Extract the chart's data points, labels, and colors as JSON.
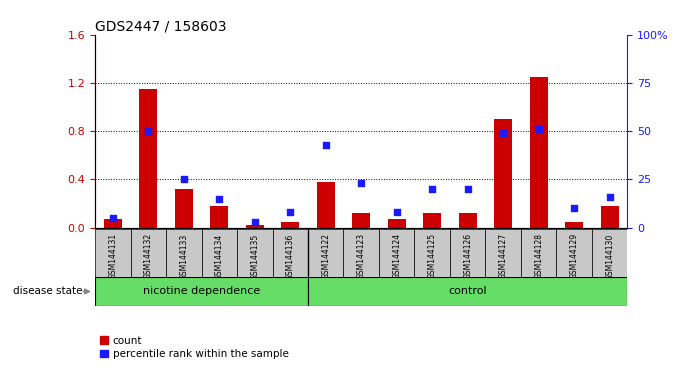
{
  "title": "GDS2447 / 158603",
  "categories": [
    "GSM144131",
    "GSM144132",
    "GSM144133",
    "GSM144134",
    "GSM144135",
    "GSM144136",
    "GSM144122",
    "GSM144123",
    "GSM144124",
    "GSM144125",
    "GSM144126",
    "GSM144127",
    "GSM144128",
    "GSM144129",
    "GSM144130"
  ],
  "count_values": [
    0.07,
    1.15,
    0.32,
    0.18,
    0.02,
    0.05,
    0.38,
    0.12,
    0.07,
    0.12,
    0.12,
    0.9,
    1.25,
    0.05,
    0.18
  ],
  "percentile_values": [
    5,
    50,
    25,
    15,
    3,
    8,
    43,
    23,
    8,
    20,
    20,
    49,
    51,
    10,
    16
  ],
  "group_separator": 5.5,
  "ylim_left": [
    0,
    1.6
  ],
  "ylim_right": [
    0,
    100
  ],
  "yticks_left": [
    0,
    0.4,
    0.8,
    1.2,
    1.6
  ],
  "yticks_right": [
    0,
    25,
    50,
    75,
    100
  ],
  "bar_color": "#cc0000",
  "dot_color": "#1a1aff",
  "background_color": "#ffffff",
  "tick_label_bg": "#c8c8c8",
  "group1_label": "nicotine dependence",
  "group2_label": "control",
  "group_color": "#66dd66",
  "disease_state_label": "disease state",
  "legend_count": "count",
  "legend_percentile": "percentile rank within the sample",
  "bar_width": 0.5
}
